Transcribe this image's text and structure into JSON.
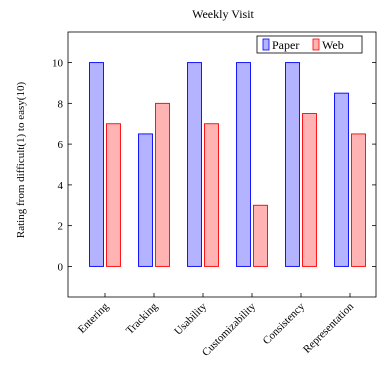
{
  "chart_data": {
    "type": "bar",
    "title": "Weekly Visit",
    "xlabel": "",
    "ylabel": "Rating from difficult(1) to easy(10)",
    "categories": [
      "Entering",
      "Tracking",
      "Usability",
      "Customizability",
      "Consistency",
      "Representation"
    ],
    "series": [
      {
        "name": "Paper",
        "values": [
          10,
          6.5,
          10,
          10,
          10,
          8.5
        ],
        "fill": "#b3b3ff",
        "stroke": "#0000ff"
      },
      {
        "name": "Web",
        "values": [
          7,
          8,
          7,
          3,
          7.5,
          6.5
        ],
        "fill": "#ffb3b3",
        "stroke": "#ff0000"
      }
    ],
    "ylim": [
      -1.5,
      11.5
    ],
    "yticks": [
      0,
      2,
      4,
      6,
      8,
      10
    ],
    "legend_position": "top-right",
    "grid": false
  }
}
